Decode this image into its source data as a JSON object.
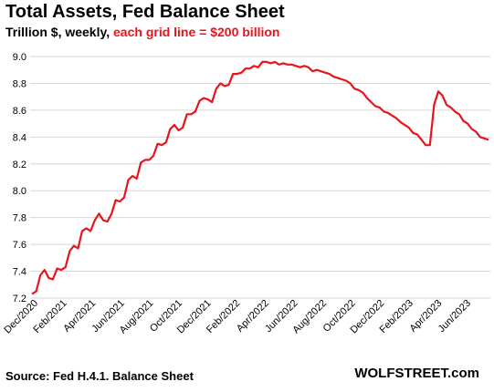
{
  "chart_data": {
    "type": "line",
    "title": "Total Assets, Fed Balance Sheet",
    "subtitle_plain": "Trillion $, weekly, ",
    "subtitle_highlight": "each grid line = $200 billion",
    "source": "Source: Fed H.4.1. Balance Sheet",
    "brand": "WOLFSTREET.com",
    "ylim": [
      7.2,
      9.0
    ],
    "y_ticks": [
      "7.2",
      "7.4",
      "7.6",
      "7.8",
      "8.0",
      "8.2",
      "8.4",
      "8.6",
      "8.8",
      "9.0"
    ],
    "x_tick_labels": [
      "Dec/2020",
      "Feb/2021",
      "Apr/2021",
      "Jun/2021",
      "Aug/2021",
      "Oct/2021",
      "Dec/2021",
      "Feb/2022",
      "Apr/2022",
      "Jun/2022",
      "Aug/2022",
      "Oct/2022",
      "Dec/2022",
      "Feb/2023",
      "Apr/2023",
      "Jun/2023"
    ],
    "grid": true,
    "line_color": "#e8141b",
    "series": [
      {
        "values": [
          7.23,
          7.25,
          7.37,
          7.41,
          7.35,
          7.34,
          7.42,
          7.41,
          7.43,
          7.55,
          7.59,
          7.57,
          7.7,
          7.72,
          7.7,
          7.78,
          7.83,
          7.78,
          7.77,
          7.83,
          7.93,
          7.92,
          7.95,
          8.08,
          8.11,
          8.09,
          8.21,
          8.23,
          8.23,
          8.26,
          8.35,
          8.34,
          8.36,
          8.46,
          8.49,
          8.45,
          8.47,
          8.57,
          8.57,
          8.59,
          8.67,
          8.69,
          8.68,
          8.66,
          8.76,
          8.8,
          8.78,
          8.79,
          8.87,
          8.87,
          8.88,
          8.91,
          8.91,
          8.93,
          8.92,
          8.96,
          8.96,
          8.95,
          8.96,
          8.94,
          8.95,
          8.94,
          8.94,
          8.93,
          8.92,
          8.93,
          8.92,
          8.89,
          8.9,
          8.89,
          8.88,
          8.87,
          8.85,
          8.84,
          8.83,
          8.82,
          8.8,
          8.76,
          8.75,
          8.73,
          8.69,
          8.66,
          8.63,
          8.62,
          8.59,
          8.58,
          8.56,
          8.54,
          8.51,
          8.49,
          8.47,
          8.43,
          8.42,
          8.38,
          8.34,
          8.34,
          8.64,
          8.74,
          8.71,
          8.64,
          8.62,
          8.59,
          8.57,
          8.52,
          8.5,
          8.46,
          8.44,
          8.4,
          8.39,
          8.38
        ]
      }
    ]
  }
}
